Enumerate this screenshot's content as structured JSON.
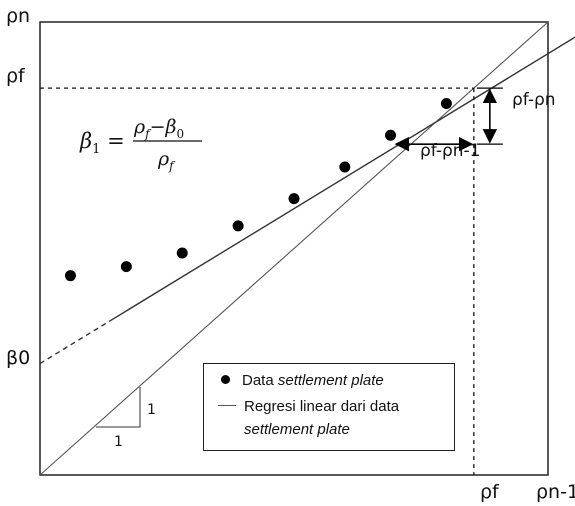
{
  "chart_data": {
    "type": "scatter",
    "title": "",
    "y_axis_label": "ρn",
    "x_axis_label": "ρn-1",
    "xlim": [
      0,
      1
    ],
    "ylim": [
      0,
      1
    ],
    "points": [
      {
        "x": 0.06,
        "y": 0.44
      },
      {
        "x": 0.17,
        "y": 0.46
      },
      {
        "x": 0.28,
        "y": 0.49
      },
      {
        "x": 0.39,
        "y": 0.55
      },
      {
        "x": 0.5,
        "y": 0.61
      },
      {
        "x": 0.6,
        "y": 0.68
      },
      {
        "x": 0.69,
        "y": 0.75
      },
      {
        "x": 0.8,
        "y": 0.82
      }
    ],
    "regression": {
      "intercept": 0.246,
      "slope": 0.684,
      "dashed_until_x": 0.14
    },
    "reference_line": {
      "slope": 1,
      "intercept": 0
    },
    "rho_f": 0.854,
    "annotations": {
      "rho_f_y": "ρf",
      "rho_f_x": "ρf",
      "beta0": "β0",
      "diff_vertical": "ρf-ρn",
      "diff_horizontal": "ρf-ρn-1",
      "slope_rise": "1",
      "slope_run": "1",
      "formula": "β1 = (ρf − β0) / ρf"
    },
    "formula": {
      "lhs": "β",
      "lhs_sub": "1",
      "num_a": "ρ",
      "num_a_sub": "f",
      "minus": "−",
      "num_b": "β",
      "num_b_sub": "0",
      "den": "ρ",
      "den_sub": "f"
    },
    "legend": {
      "placement": "bottom-right",
      "entries": [
        {
          "type": "dot",
          "text_plain": "Data ",
          "text_italic": "settlement plate"
        },
        {
          "type": "line",
          "text_plain": "Regresi linear dari data",
          "text_italic": "settlement plate"
        }
      ]
    }
  }
}
